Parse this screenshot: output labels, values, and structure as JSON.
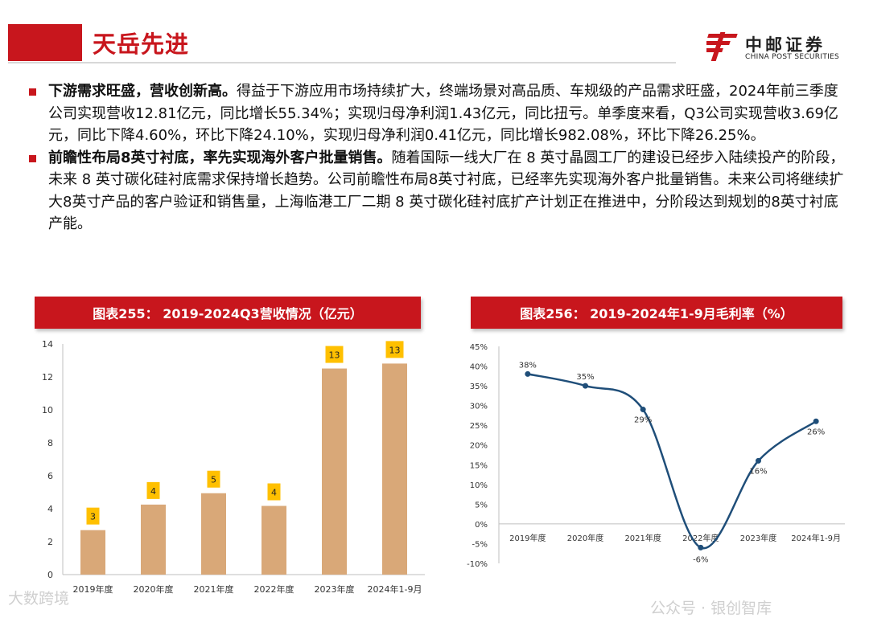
{
  "header": {
    "title": "天岳先进",
    "logo_cn": "中邮证券",
    "logo_en": "CHINA POST SECURITIES"
  },
  "bullets": [
    {
      "lead": "下游需求旺盛，营收创新高。",
      "body": "得益于下游应用市场持续扩大，终端场景对高品质、车规级的产品需求旺盛，2024年前三季度公司实现营收12.81亿元，同比增长55.34%；实现归母净利润1.43亿元，同比扭亏。单季度来看，Q3公司实现营收3.69亿元，同比下降4.60%，环比下降24.10%，实现归母净利润0.41亿元，同比增长982.08%，环比下降26.25%。"
    },
    {
      "lead": "前瞻性布局8英寸衬底，率先实现海外客户批量销售。",
      "body": "随着国际一线大厂在 8 英寸晶圆工厂的建设已经步入陆续投产的阶段，未来 8 英寸碳化硅衬底需求保持增长趋势。公司前瞻性布局8英寸衬底，已经率先实现海外客户批量销售。未来公司将继续扩大8英寸产品的客户验证和销售量，上海临港工厂二期 8 英寸碳化硅衬底扩产计划正在推进中，分阶段达到规划的8英寸衬底产能。"
    }
  ],
  "charts": {
    "left_title": "图表255： 2019-2024Q3营收情况（亿元）",
    "right_title": "图表256： 2019-2024年1-9月毛利率（%）"
  },
  "chart_data": [
    {
      "type": "bar",
      "title": "图表255： 2019-2024Q3营收情况（亿元）",
      "categories": [
        "2019年度",
        "2020年度",
        "2021年度",
        "2022年度",
        "2023年度",
        "2024年1-9月"
      ],
      "values": [
        2.7,
        4.25,
        4.94,
        4.17,
        12.51,
        12.81
      ],
      "data_labels": [
        "3",
        "4",
        "5",
        "4",
        "13",
        "13"
      ],
      "ylim": [
        0,
        14
      ],
      "yticks": [
        "0",
        "2",
        "4",
        "6",
        "8",
        "10",
        "12",
        "14"
      ],
      "bar_color": "#d9a878",
      "label_bg": "#ffc000",
      "grid": false
    },
    {
      "type": "line",
      "title": "图表256： 2019-2024年1-9月毛利率（%）",
      "categories": [
        "2019年度",
        "2020年度",
        "2021年度",
        "2022年度",
        "2023年度",
        "2024年1-9月"
      ],
      "values": [
        38,
        35,
        29,
        -6,
        16,
        26
      ],
      "data_labels": [
        "38%",
        "35%",
        "29%",
        "-6%",
        "16%",
        "26%"
      ],
      "ylim": [
        -10,
        45
      ],
      "yticks": [
        "-10%",
        "-5%",
        "0%",
        "5%",
        "10%",
        "15%",
        "20%",
        "25%",
        "30%",
        "35%",
        "40%",
        "45%"
      ],
      "line_color": "#1f4e79",
      "smooth": true,
      "grid": false
    }
  ],
  "watermarks": {
    "left": "大数跨境",
    "right": "公众号 · 银创智库"
  }
}
